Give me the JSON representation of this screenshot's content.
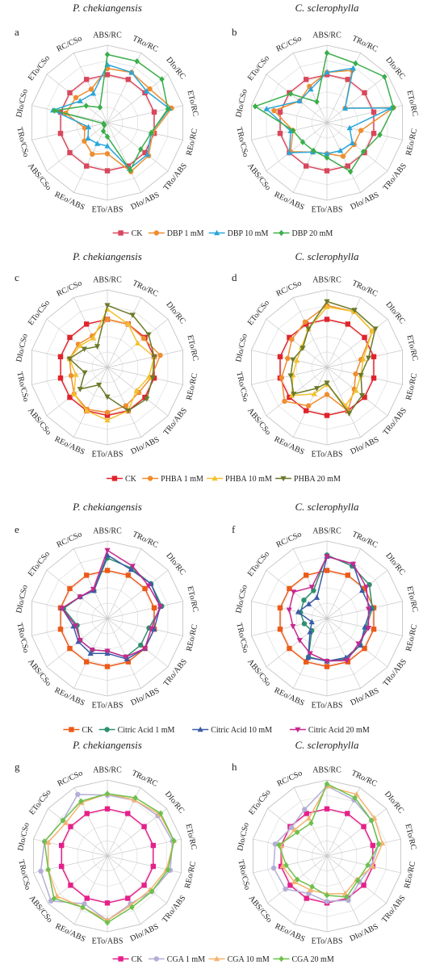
{
  "figure": {
    "species_left": "P. chekiangensis",
    "species_right": "C. sclerophylla"
  },
  "chart_data": [
    {
      "type": "radar",
      "panel": "a",
      "species": "P. chekiangensis",
      "rmax": 100,
      "categories": [
        "ABS/RC",
        "TRo/RC",
        "DIo/RC",
        "ETo/RC",
        "REo/RC",
        "TRo/ABS",
        "DIo/ABS",
        "ETo/ABS",
        "REo/ABS",
        "ABS/CSo",
        "TRo/CSo",
        "DIo/CSo",
        "ETo/CSo",
        "RC/CSo"
      ],
      "legend": [
        "CK",
        "DBP 1 mM",
        "DBP 10 mM",
        "DBP 20 mM"
      ],
      "series": [
        {
          "name": "CK",
          "color": "#d9475c",
          "marker": "square",
          "values": [
            62,
            62,
            62,
            62,
            62,
            62,
            62,
            62,
            62,
            62,
            62,
            62,
            62,
            62
          ]
        },
        {
          "name": "DBP 1 mM",
          "color": "#ef8d2f",
          "marker": "circle",
          "values": [
            70,
            72,
            70,
            85,
            60,
            68,
            70,
            40,
            45,
            38,
            30,
            55,
            52,
            48
          ]
        },
        {
          "name": "DBP 10 mM",
          "color": "#2aa6d9",
          "marker": "triangle",
          "values": [
            75,
            72,
            65,
            82,
            58,
            66,
            66,
            30,
            30,
            32,
            25,
            72,
            45,
            42
          ]
        },
        {
          "name": "DBP 20 mM",
          "color": "#3aae4a",
          "marker": "diamond",
          "values": [
            88,
            88,
            90,
            80,
            58,
            55,
            68,
            18,
            12,
            5,
            5,
            70,
            35,
            22
          ]
        }
      ]
    },
    {
      "type": "radar",
      "panel": "b",
      "species": "C. sclerophylla",
      "rmax": 100,
      "categories": [
        "ABS/RC",
        "TRo/RC",
        "DIo/RC",
        "ETo/RC",
        "REo/RC",
        "TRo/ABS",
        "DIo/ABS",
        "ETo/ABS",
        "REo/ABS",
        "ABS/CSo",
        "TRo/CSo",
        "DIo/CSo",
        "ETo/CSo",
        "RC/CSo"
      ],
      "legend": [
        "CK",
        "DBP 1 mM",
        "DBP 10 mM",
        "DBP 20 mM"
      ],
      "series": [
        {
          "name": "CK",
          "color": "#d9475c",
          "marker": "square",
          "values": [
            62,
            62,
            62,
            62,
            62,
            62,
            62,
            62,
            62,
            62,
            62,
            62,
            62,
            62
          ]
        },
        {
          "name": "DBP 1 mM",
          "color": "#ef8d2f",
          "marker": "circle",
          "values": [
            65,
            75,
            30,
            88,
            45,
            45,
            48,
            40,
            42,
            60,
            45,
            70,
            45,
            52
          ]
        },
        {
          "name": "DBP 10 mM",
          "color": "#2aa6d9",
          "marker": "triangle",
          "values": [
            65,
            78,
            30,
            85,
            30,
            42,
            40,
            40,
            42,
            62,
            48,
            80,
            45,
            48
          ]
        },
        {
          "name": "DBP 20 mM",
          "color": "#3aae4a",
          "marker": "diamond",
          "values": [
            90,
            85,
            95,
            88,
            70,
            60,
            70,
            45,
            40,
            40,
            45,
            95,
            60,
            30
          ]
        }
      ]
    },
    {
      "type": "radar",
      "panel": "c",
      "species": "P. chekiangensis",
      "rmax": 100,
      "categories": [
        "ABS/RC",
        "TRo/RC",
        "DIo/RC",
        "ETo/RC",
        "REo/RC",
        "TRo/ABS",
        "DIo/ABS",
        "ETo/ABS",
        "REo/ABS",
        "ABS/CSo",
        "TRo/CSo",
        "DIo/CSo",
        "ETo/CSo",
        "RC/CSo"
      ],
      "legend": [
        "CK",
        "PHBA 1 mM",
        "PHBA 10 mM",
        "PHBA 20 mM"
      ],
      "series": [
        {
          "name": "CK",
          "color": "#e0242c",
          "marker": "square",
          "values": [
            62,
            62,
            62,
            62,
            62,
            62,
            62,
            62,
            62,
            62,
            62,
            62,
            62,
            62
          ]
        },
        {
          "name": "PHBA 1 mM",
          "color": "#ef8d2f",
          "marker": "circle",
          "values": [
            62,
            62,
            60,
            70,
            58,
            52,
            55,
            58,
            60,
            55,
            48,
            50,
            48,
            45
          ]
        },
        {
          "name": "PHBA 10 mM",
          "color": "#f2c12e",
          "marker": "triangle",
          "values": [
            75,
            62,
            50,
            62,
            55,
            48,
            62,
            68,
            62,
            55,
            42,
            50,
            45,
            42
          ]
        },
        {
          "name": "PHBA 20 mM",
          "color": "#6b7a2a",
          "marker": "triangle-down",
          "values": [
            80,
            75,
            68,
            62,
            60,
            65,
            62,
            38,
            25,
            45,
            30,
            50,
            38,
            30
          ]
        }
      ]
    },
    {
      "type": "radar",
      "panel": "d",
      "species": "C. sclerophylla",
      "rmax": 100,
      "categories": [
        "ABS/RC",
        "TRo/RC",
        "DIo/RC",
        "ETo/RC",
        "REo/RC",
        "TRo/ABS",
        "DIo/ABS",
        "ETo/ABS",
        "REo/ABS",
        "ABS/CSo",
        "TRo/CSo",
        "DIo/CSo",
        "ETo/CSo",
        "RC/CSo"
      ],
      "legend": [
        "CK",
        "PHBA 1 mM",
        "PHBA 10 mM",
        "PHBA 20 mM"
      ],
      "series": [
        {
          "name": "CK",
          "color": "#e0242c",
          "marker": "square",
          "values": [
            62,
            62,
            62,
            62,
            62,
            62,
            62,
            62,
            62,
            62,
            62,
            62,
            62,
            62
          ]
        },
        {
          "name": "PHBA 1 mM",
          "color": "#ef8d2f",
          "marker": "circle",
          "values": [
            80,
            80,
            75,
            45,
            38,
            45,
            62,
            35,
            55,
            70,
            60,
            52,
            58,
            65
          ]
        },
        {
          "name": "PHBA 10 mM",
          "color": "#f2c12e",
          "marker": "triangle",
          "values": [
            78,
            80,
            75,
            48,
            45,
            48,
            55,
            22,
            38,
            58,
            45,
            40,
            42,
            55
          ]
        },
        {
          "name": "PHBA 20 mM",
          "color": "#6b7a2a",
          "marker": "triangle-down",
          "values": [
            85,
            82,
            80,
            55,
            45,
            58,
            66,
            20,
            30,
            55,
            48,
            45,
            40,
            55
          ]
        }
      ]
    },
    {
      "type": "radar",
      "panel": "e",
      "species": "P. chekiangensis",
      "rmax": 100,
      "categories": [
        "ABS/RC",
        "TRo/RC",
        "DIo/RC",
        "ETo/RC",
        "REo/RC",
        "TRo/ABS",
        "DIo/ABS",
        "ETo/ABS",
        "REo/ABS",
        "ABS/CSo",
        "TRo/CSo",
        "DIo/CSo",
        "ETo/CSo",
        "RC/CSo"
      ],
      "legend": [
        "CK",
        "Citric Acid 1 mM",
        "Citric Acid 10 mM",
        "Citric Acid 20 mM"
      ],
      "series": [
        {
          "name": "CK",
          "color": "#ec5a18",
          "marker": "square",
          "values": [
            62,
            62,
            62,
            62,
            62,
            62,
            62,
            62,
            62,
            62,
            62,
            62,
            62,
            62
          ]
        },
        {
          "name": "Citric Acid 1 mM",
          "color": "#2f8f6e",
          "marker": "circle",
          "values": [
            78,
            72,
            72,
            72,
            55,
            55,
            55,
            42,
            45,
            45,
            40,
            58,
            45,
            40
          ]
        },
        {
          "name": "Citric Acid 10 mM",
          "color": "#3b5ba7",
          "marker": "triangle",
          "values": [
            82,
            70,
            72,
            70,
            62,
            62,
            58,
            45,
            50,
            48,
            45,
            60,
            45,
            40
          ]
        },
        {
          "name": "Citric Acid 20 mM",
          "color": "#c7278f",
          "marker": "triangle-down",
          "values": [
            88,
            75,
            68,
            70,
            58,
            62,
            55,
            42,
            45,
            45,
            42,
            60,
            45,
            42
          ]
        }
      ]
    },
    {
      "type": "radar",
      "panel": "f",
      "species": "C. sclerophylla",
      "rmax": 100,
      "categories": [
        "ABS/RC",
        "TRo/RC",
        "DIo/RC",
        "ETo/RC",
        "REo/RC",
        "TRo/ABS",
        "DIo/ABS",
        "ETo/ABS",
        "REo/ABS",
        "ABS/CSo",
        "TRo/CSo",
        "DIo/CSo",
        "ETo/CSo",
        "RC/CSo"
      ],
      "legend": [
        "CK",
        "Citric Acid 1 mM",
        "Citric Acid 10 mM",
        "Citric Acid 20 mM"
      ],
      "series": [
        {
          "name": "CK",
          "color": "#ec5a18",
          "marker": "square",
          "values": [
            62,
            62,
            62,
            62,
            62,
            62,
            62,
            62,
            62,
            62,
            62,
            62,
            62,
            62
          ]
        },
        {
          "name": "Citric Acid 1 mM",
          "color": "#2f8f6e",
          "marker": "circle",
          "values": [
            82,
            75,
            70,
            60,
            52,
            55,
            58,
            55,
            55,
            25,
            30,
            35,
            38,
            40
          ]
        },
        {
          "name": "Citric Acid 10 mM",
          "color": "#3b5ba7",
          "marker": "triangle",
          "values": [
            80,
            78,
            58,
            58,
            50,
            55,
            56,
            55,
            56,
            28,
            20,
            38,
            30,
            30
          ]
        },
        {
          "name": "Citric Acid 20 mM",
          "color": "#c7278f",
          "marker": "triangle-down",
          "values": [
            80,
            78,
            65,
            55,
            55,
            52,
            60,
            55,
            50,
            45,
            45,
            50,
            55,
            45
          ]
        }
      ]
    },
    {
      "type": "radar",
      "panel": "g",
      "species": "P. chekiangensis",
      "rmax": 100,
      "categories": [
        "ABS/RC",
        "TRo/RC",
        "DIo/RC",
        "ETo/RC",
        "REo/RC",
        "TRo/ABS",
        "DIo/ABS",
        "ETo/ABS",
        "REo/ABS",
        "ABS/CSo",
        "TRo/CSo",
        "DIo/CSo",
        "ETo/CSo",
        "RC/CSo"
      ],
      "legend": [
        "CK",
        "CGA 1 mM",
        "CGA 10 mM",
        "CGA 20 mM"
      ],
      "series": [
        {
          "name": "CK",
          "color": "#e5208a",
          "marker": "square",
          "values": [
            62,
            62,
            62,
            62,
            62,
            62,
            62,
            62,
            62,
            62,
            62,
            62,
            62,
            62
          ]
        },
        {
          "name": "CGA 1 mM",
          "color": "#b3aed6",
          "marker": "circle",
          "values": [
            80,
            82,
            85,
            88,
            85,
            75,
            70,
            85,
            70,
            95,
            90,
            85,
            75,
            90
          ]
        },
        {
          "name": "CGA 10 mM",
          "color": "#f5b26f",
          "marker": "triangle",
          "values": [
            82,
            82,
            88,
            90,
            80,
            72,
            72,
            85,
            75,
            85,
            80,
            80,
            70,
            78
          ]
        },
        {
          "name": "CGA 20 mM",
          "color": "#6cc14c",
          "marker": "diamond",
          "values": [
            82,
            85,
            90,
            90,
            82,
            75,
            75,
            88,
            75,
            90,
            80,
            85,
            75,
            80
          ]
        }
      ]
    },
    {
      "type": "radar",
      "panel": "h",
      "species": "C. sclerophylla",
      "rmax": 100,
      "categories": [
        "ABS/RC",
        "TRo/RC",
        "DIo/RC",
        "ETo/RC",
        "REo/RC",
        "TRo/ABS",
        "DIo/ABS",
        "ETo/ABS",
        "REo/ABS",
        "ABS/CSo",
        "TRo/CSo",
        "DIo/CSo",
        "ETo/CSo",
        "RC/CSo"
      ],
      "legend": [
        "CK",
        "CGA 1 mM",
        "CGA 10 mM",
        "CGA 20 mM"
      ],
      "series": [
        {
          "name": "CK",
          "color": "#e5208a",
          "marker": "square",
          "values": [
            62,
            62,
            62,
            62,
            62,
            62,
            62,
            62,
            62,
            62,
            62,
            62,
            62,
            62
          ]
        },
        {
          "name": "CGA 1 mM",
          "color": "#b3aed6",
          "marker": "circle",
          "values": [
            92,
            82,
            75,
            70,
            60,
            55,
            65,
            60,
            55,
            70,
            72,
            70,
            60,
            68
          ]
        },
        {
          "name": "CGA 10 mM",
          "color": "#f5b26f",
          "marker": "triangle",
          "values": [
            92,
            90,
            80,
            75,
            62,
            50,
            55,
            50,
            50,
            55,
            60,
            62,
            55,
            55
          ]
        },
        {
          "name": "CGA 20 mM",
          "color": "#6cc14c",
          "marker": "diamond",
          "values": [
            95,
            85,
            75,
            70,
            55,
            52,
            60,
            52,
            45,
            50,
            55,
            65,
            50,
            48
          ]
        }
      ]
    }
  ]
}
